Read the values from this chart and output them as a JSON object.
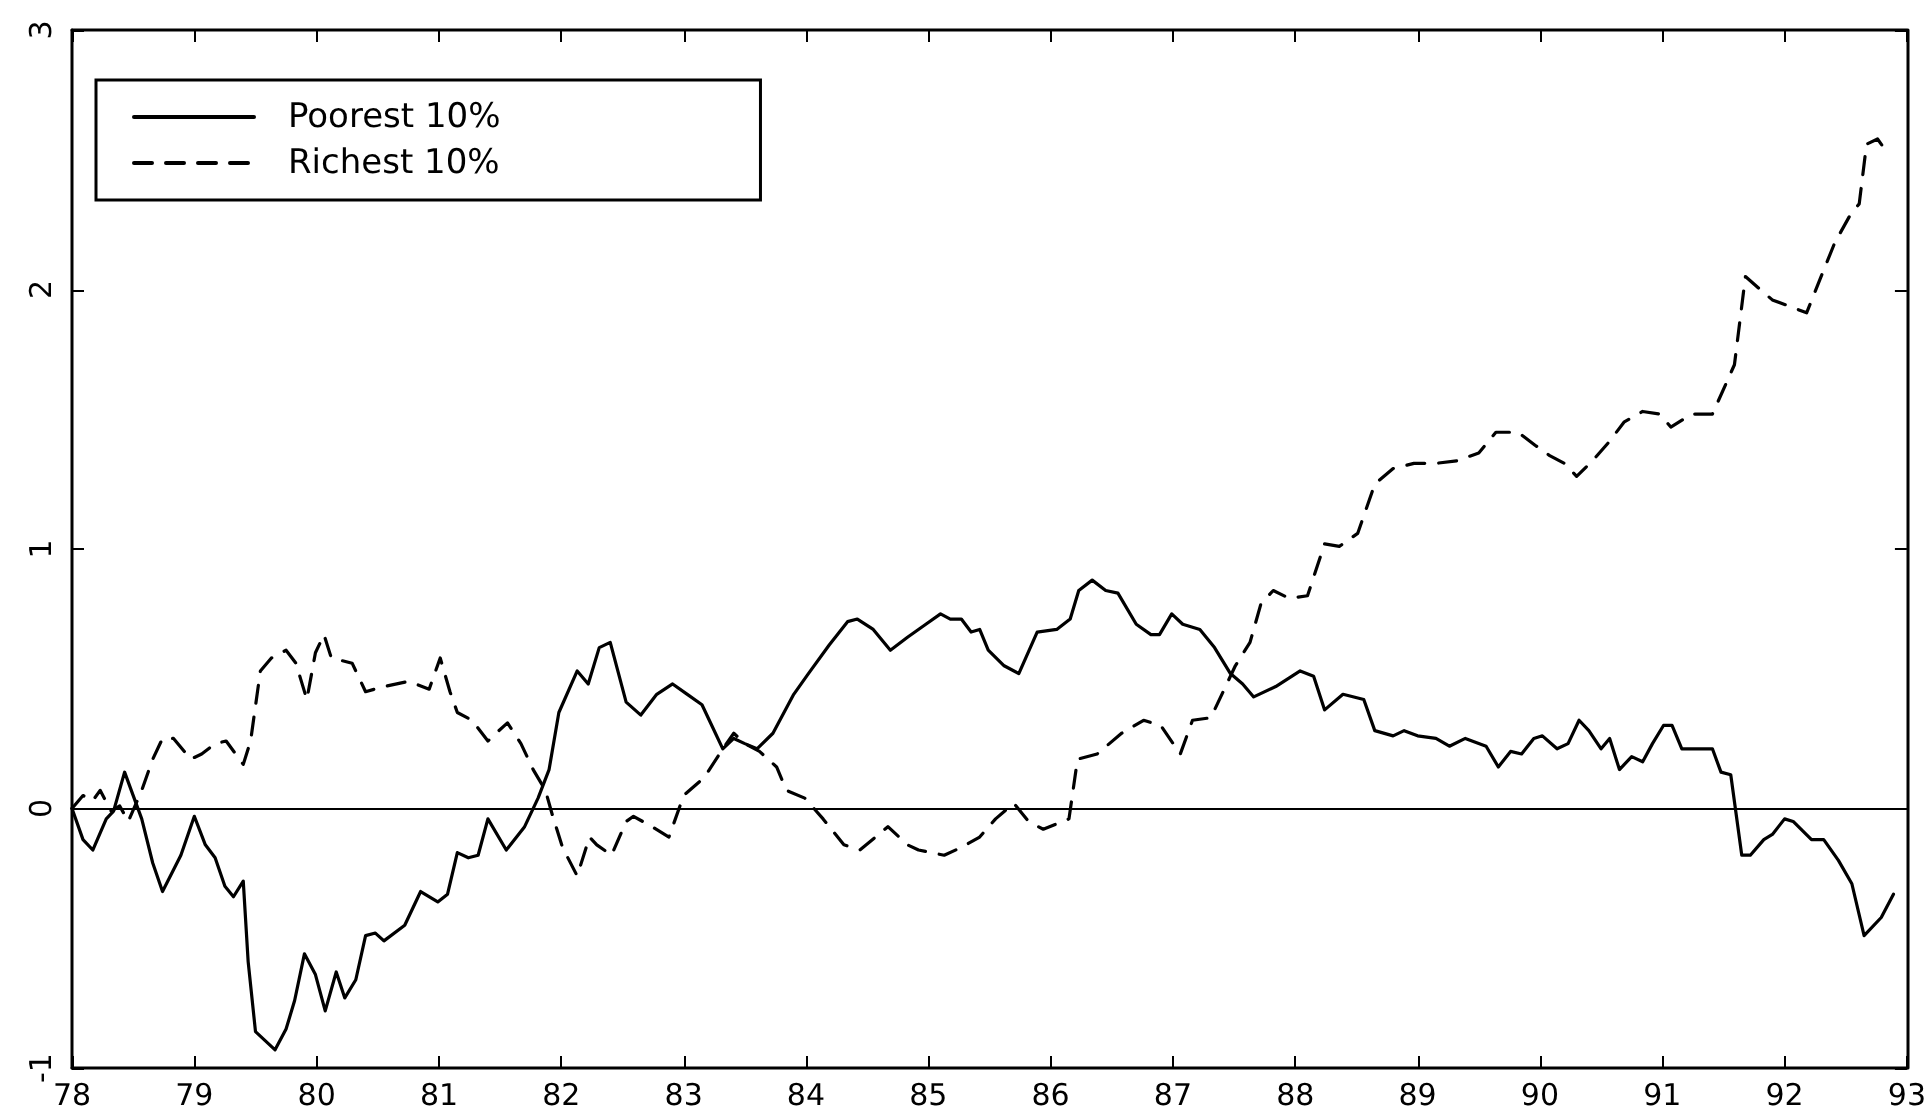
{
  "chart_data": {
    "type": "line",
    "xlim": [
      78,
      93
    ],
    "xticks": [
      78,
      79,
      80,
      81,
      82,
      83,
      84,
      85,
      86,
      87,
      88,
      89,
      90,
      91,
      92,
      93
    ],
    "ylim": [
      -1,
      3
    ],
    "yticks": [
      -1,
      0,
      1,
      2,
      3
    ],
    "grid": false,
    "legend": "top left",
    "marker": "none",
    "ref_lines": [
      {
        "axis": "y",
        "value": 0,
        "label": null,
        "color": "#000000"
      }
    ],
    "series": [
      {
        "name": "Poorest 10%",
        "color": "#000000",
        "line_style": "solid",
        "x": [
          78,
          78.09,
          78.17,
          78.28,
          78.34,
          78.43,
          78.57,
          78.66,
          78.74,
          78.89,
          79.0,
          79.09,
          79.17,
          79.25,
          79.32,
          79.4,
          79.44,
          79.5,
          79.66,
          79.75,
          79.82,
          79.9,
          79.99,
          80.07,
          80.16,
          80.23,
          80.32,
          80.4,
          80.48,
          80.55,
          80.72,
          80.85,
          80.99,
          81.07,
          81.15,
          81.24,
          81.32,
          81.4,
          81.55,
          81.7,
          81.81,
          81.9,
          81.98,
          82.13,
          82.22,
          82.31,
          82.4,
          82.53,
          82.65,
          82.78,
          82.91,
          83.03,
          83.15,
          83.23,
          83.32,
          83.41,
          83.5,
          83.6,
          83.73,
          83.9,
          84.02,
          84.19,
          84.34,
          84.42,
          84.55,
          84.69,
          84.83,
          84.98,
          85.1,
          85.18,
          85.27,
          85.35,
          85.42,
          85.49,
          85.62,
          85.74,
          85.89,
          86.05,
          86.16,
          86.23,
          86.34,
          86.45,
          86.55,
          86.7,
          86.82,
          86.89,
          86.99,
          87.08,
          87.22,
          87.34,
          87.47,
          87.57,
          87.66,
          87.84,
          88.04,
          88.15,
          88.24,
          88.39,
          88.56,
          88.65,
          88.8,
          88.89,
          89.0,
          89.15,
          89.26,
          89.39,
          89.56,
          89.66,
          89.76,
          89.85,
          89.95,
          90.02,
          90.14,
          90.23,
          90.32,
          90.4,
          90.5,
          90.57,
          90.65,
          90.75,
          90.84,
          90.92,
          91.01,
          91.08,
          91.16,
          91.27,
          91.41,
          91.48,
          91.56,
          91.65,
          91.72,
          91.83,
          91.9,
          92.0,
          92.07,
          92.22,
          92.32,
          92.44,
          92.55,
          92.65,
          92.79,
          92.89
        ],
        "values": [
          0,
          -0.12,
          -0.16,
          -0.04,
          -0.01,
          0.14,
          -0.04,
          -0.21,
          -0.32,
          -0.18,
          -0.03,
          -0.14,
          -0.19,
          -0.3,
          -0.34,
          -0.28,
          -0.59,
          -0.86,
          -0.93,
          -0.85,
          -0.74,
          -0.56,
          -0.64,
          -0.78,
          -0.63,
          -0.73,
          -0.66,
          -0.49,
          -0.48,
          -0.51,
          -0.45,
          -0.32,
          -0.36,
          -0.33,
          -0.17,
          -0.19,
          -0.18,
          -0.04,
          -0.16,
          -0.07,
          0.04,
          0.15,
          0.37,
          0.53,
          0.48,
          0.62,
          0.64,
          0.41,
          0.36,
          0.44,
          0.48,
          0.44,
          0.4,
          0.32,
          0.23,
          0.27,
          0.25,
          0.23,
          0.29,
          0.44,
          0.52,
          0.63,
          0.72,
          0.73,
          0.69,
          0.61,
          0.66,
          0.71,
          0.75,
          0.73,
          0.73,
          0.68,
          0.69,
          0.61,
          0.55,
          0.52,
          0.68,
          0.69,
          0.73,
          0.84,
          0.88,
          0.84,
          0.83,
          0.71,
          0.67,
          0.67,
          0.75,
          0.71,
          0.69,
          0.62,
          0.52,
          0.48,
          0.43,
          0.47,
          0.53,
          0.51,
          0.38,
          0.44,
          0.42,
          0.3,
          0.28,
          0.3,
          0.28,
          0.27,
          0.24,
          0.27,
          0.24,
          0.16,
          0.22,
          0.21,
          0.27,
          0.28,
          0.23,
          0.25,
          0.34,
          0.3,
          0.23,
          0.27,
          0.15,
          0.2,
          0.18,
          0.25,
          0.32,
          0.32,
          0.23,
          0.23,
          0.23,
          0.14,
          0.13,
          -0.18,
          -0.18,
          -0.12,
          -0.1,
          -0.04,
          -0.05,
          -0.12,
          -0.12,
          -0.2,
          -0.29,
          -0.49,
          -0.42,
          -0.33
        ]
      },
      {
        "name": "Richest 10%",
        "color": "#000000",
        "line_style": "dashed",
        "x": [
          78,
          78.09,
          78.17,
          78.23,
          78.32,
          78.39,
          78.46,
          78.57,
          78.66,
          78.74,
          78.83,
          78.97,
          79.06,
          79.17,
          79.26,
          79.4,
          79.46,
          79.54,
          79.63,
          79.75,
          79.83,
          79.92,
          79.99,
          80.06,
          80.12,
          80.29,
          80.4,
          80.55,
          80.75,
          80.92,
          81.01,
          81.09,
          81.15,
          81.27,
          81.4,
          81.49,
          81.56,
          81.67,
          81.77,
          81.87,
          81.93,
          82.01,
          82.13,
          82.23,
          82.29,
          82.41,
          82.53,
          82.59,
          82.74,
          82.88,
          83.0,
          83.17,
          83.32,
          83.41,
          83.5,
          83.62,
          83.76,
          83.84,
          83.99,
          84.14,
          84.31,
          84.44,
          84.57,
          84.67,
          84.83,
          84.92,
          85.13,
          85.27,
          85.42,
          85.55,
          85.7,
          85.82,
          85.94,
          86.15,
          86.22,
          86.38,
          86.58,
          86.76,
          86.9,
          87.06,
          87.16,
          87.31,
          87.4,
          87.51,
          87.63,
          87.72,
          87.82,
          87.95,
          88.1,
          88.24,
          88.36,
          88.51,
          88.65,
          88.8,
          88.97,
          89.15,
          89.32,
          89.5,
          89.64,
          89.82,
          89.96,
          90.08,
          90.2,
          90.3,
          90.43,
          90.56,
          90.69,
          90.84,
          90.98,
          91.07,
          91.24,
          91.41,
          91.59,
          91.68,
          91.8,
          91.9,
          92.07,
          92.18,
          92.29,
          92.41,
          92.54,
          92.61,
          92.67,
          92.76,
          92.82
        ],
        "values": [
          0,
          0.05,
          0.03,
          0.07,
          -0.01,
          0.01,
          -0.05,
          0.07,
          0.19,
          0.27,
          0.27,
          0.19,
          0.21,
          0.25,
          0.26,
          0.17,
          0.26,
          0.53,
          0.58,
          0.61,
          0.56,
          0.42,
          0.6,
          0.67,
          0.58,
          0.56,
          0.45,
          0.47,
          0.49,
          0.46,
          0.58,
          0.45,
          0.37,
          0.34,
          0.26,
          0.3,
          0.33,
          0.25,
          0.15,
          0.07,
          -0.03,
          -0.15,
          -0.26,
          -0.11,
          -0.14,
          -0.18,
          -0.05,
          -0.03,
          -0.07,
          -0.11,
          0.05,
          0.12,
          0.23,
          0.29,
          0.25,
          0.22,
          0.16,
          0.07,
          0.04,
          -0.04,
          -0.14,
          -0.16,
          -0.11,
          -0.07,
          -0.14,
          -0.16,
          -0.18,
          -0.15,
          -0.11,
          -0.04,
          0.02,
          -0.05,
          -0.08,
          -0.04,
          0.19,
          0.21,
          0.29,
          0.34,
          0.32,
          0.21,
          0.34,
          0.35,
          0.44,
          0.55,
          0.64,
          0.79,
          0.84,
          0.81,
          0.82,
          1.02,
          1.01,
          1.06,
          1.25,
          1.31,
          1.33,
          1.33,
          1.34,
          1.37,
          1.45,
          1.45,
          1.4,
          1.36,
          1.33,
          1.28,
          1.34,
          1.41,
          1.49,
          1.53,
          1.52,
          1.47,
          1.52,
          1.52,
          1.71,
          2.05,
          2.0,
          1.96,
          1.93,
          1.91,
          2.04,
          2.18,
          2.29,
          2.33,
          2.56,
          2.58,
          2.54
        ]
      }
    ]
  }
}
